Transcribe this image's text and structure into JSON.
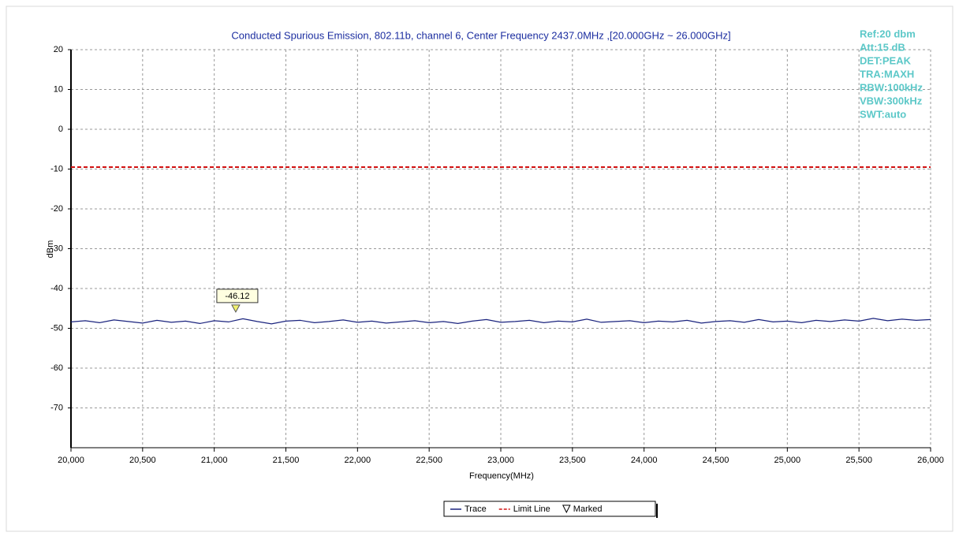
{
  "chart_data": {
    "type": "line",
    "title": "Conducted Spurious Emission, 802.11b, channel 6, Center Frequency 2437.0MHz ,[20.000GHz ~ 26.000GHz]",
    "xlabel": "Frequency(MHz)",
    "ylabel": "dBm",
    "annotations": [
      "Ref:20 dbm",
      "Att:15 dB",
      "DET:PEAK",
      "TRA:MAXH",
      "RBW:100kHz",
      "VBW:300kHz",
      "SWT:auto"
    ],
    "xlim": [
      20000,
      26000
    ],
    "ylim": [
      -80,
      20
    ],
    "xticks": [
      {
        "value": 20000,
        "label": "20,000"
      },
      {
        "value": 20500,
        "label": "20,500"
      },
      {
        "value": 21000,
        "label": "21,000"
      },
      {
        "value": 21500,
        "label": "21,500"
      },
      {
        "value": 22000,
        "label": "22,000"
      },
      {
        "value": 22500,
        "label": "22,500"
      },
      {
        "value": 23000,
        "label": "23,000"
      },
      {
        "value": 23500,
        "label": "23,500"
      },
      {
        "value": 24000,
        "label": "24,000"
      },
      {
        "value": 24500,
        "label": "24,500"
      },
      {
        "value": 25000,
        "label": "25,000"
      },
      {
        "value": 25500,
        "label": "25,500"
      },
      {
        "value": 26000,
        "label": "26,000"
      }
    ],
    "yticks": [
      20,
      10,
      0,
      -10,
      -20,
      -30,
      -40,
      -50,
      -60,
      -70
    ],
    "grid": true,
    "legend": "bottom",
    "series": [
      {
        "name": "Trace",
        "color": "#1a237e",
        "style": "solid",
        "x": [
          20000,
          20100,
          20200,
          20300,
          20400,
          20500,
          20600,
          20700,
          20800,
          20900,
          21000,
          21100,
          21200,
          21300,
          21400,
          21500,
          21600,
          21700,
          21800,
          21900,
          22000,
          22100,
          22200,
          22300,
          22400,
          22500,
          22600,
          22700,
          22800,
          22900,
          23000,
          23100,
          23200,
          23300,
          23400,
          23500,
          23600,
          23700,
          23800,
          23900,
          24000,
          24100,
          24200,
          24300,
          24400,
          24500,
          24600,
          24700,
          24800,
          24900,
          25000,
          25100,
          25200,
          25300,
          25400,
          25500,
          25600,
          25700,
          25800,
          25900,
          26000
        ],
        "values": [
          -48.4,
          -48.1,
          -48.6,
          -47.9,
          -48.3,
          -48.7,
          -48.0,
          -48.5,
          -48.2,
          -48.8,
          -48.1,
          -48.4,
          -47.6,
          -48.3,
          -48.9,
          -48.2,
          -48.0,
          -48.6,
          -48.3,
          -47.9,
          -48.5,
          -48.2,
          -48.7,
          -48.4,
          -48.1,
          -48.6,
          -48.3,
          -48.8,
          -48.2,
          -47.8,
          -48.5,
          -48.3,
          -48.0,
          -48.6,
          -48.2,
          -48.4,
          -47.7,
          -48.5,
          -48.3,
          -48.1,
          -48.6,
          -48.2,
          -48.4,
          -48.0,
          -48.7,
          -48.3,
          -48.1,
          -48.5,
          -47.8,
          -48.4,
          -48.2,
          -48.6,
          -48.0,
          -48.3,
          -47.9,
          -48.2,
          -47.5,
          -48.1,
          -47.7,
          -48.0,
          -47.8
        ]
      },
      {
        "name": "Limit Line",
        "color": "#d01010",
        "style": "dashed",
        "x": [
          20000,
          26000
        ],
        "values": [
          -9.5,
          -9.5
        ]
      }
    ],
    "markers": {
      "name": "Marked",
      "color": "#f0f070",
      "points": [
        {
          "x": 21150,
          "y": -46.12
        }
      ]
    }
  }
}
